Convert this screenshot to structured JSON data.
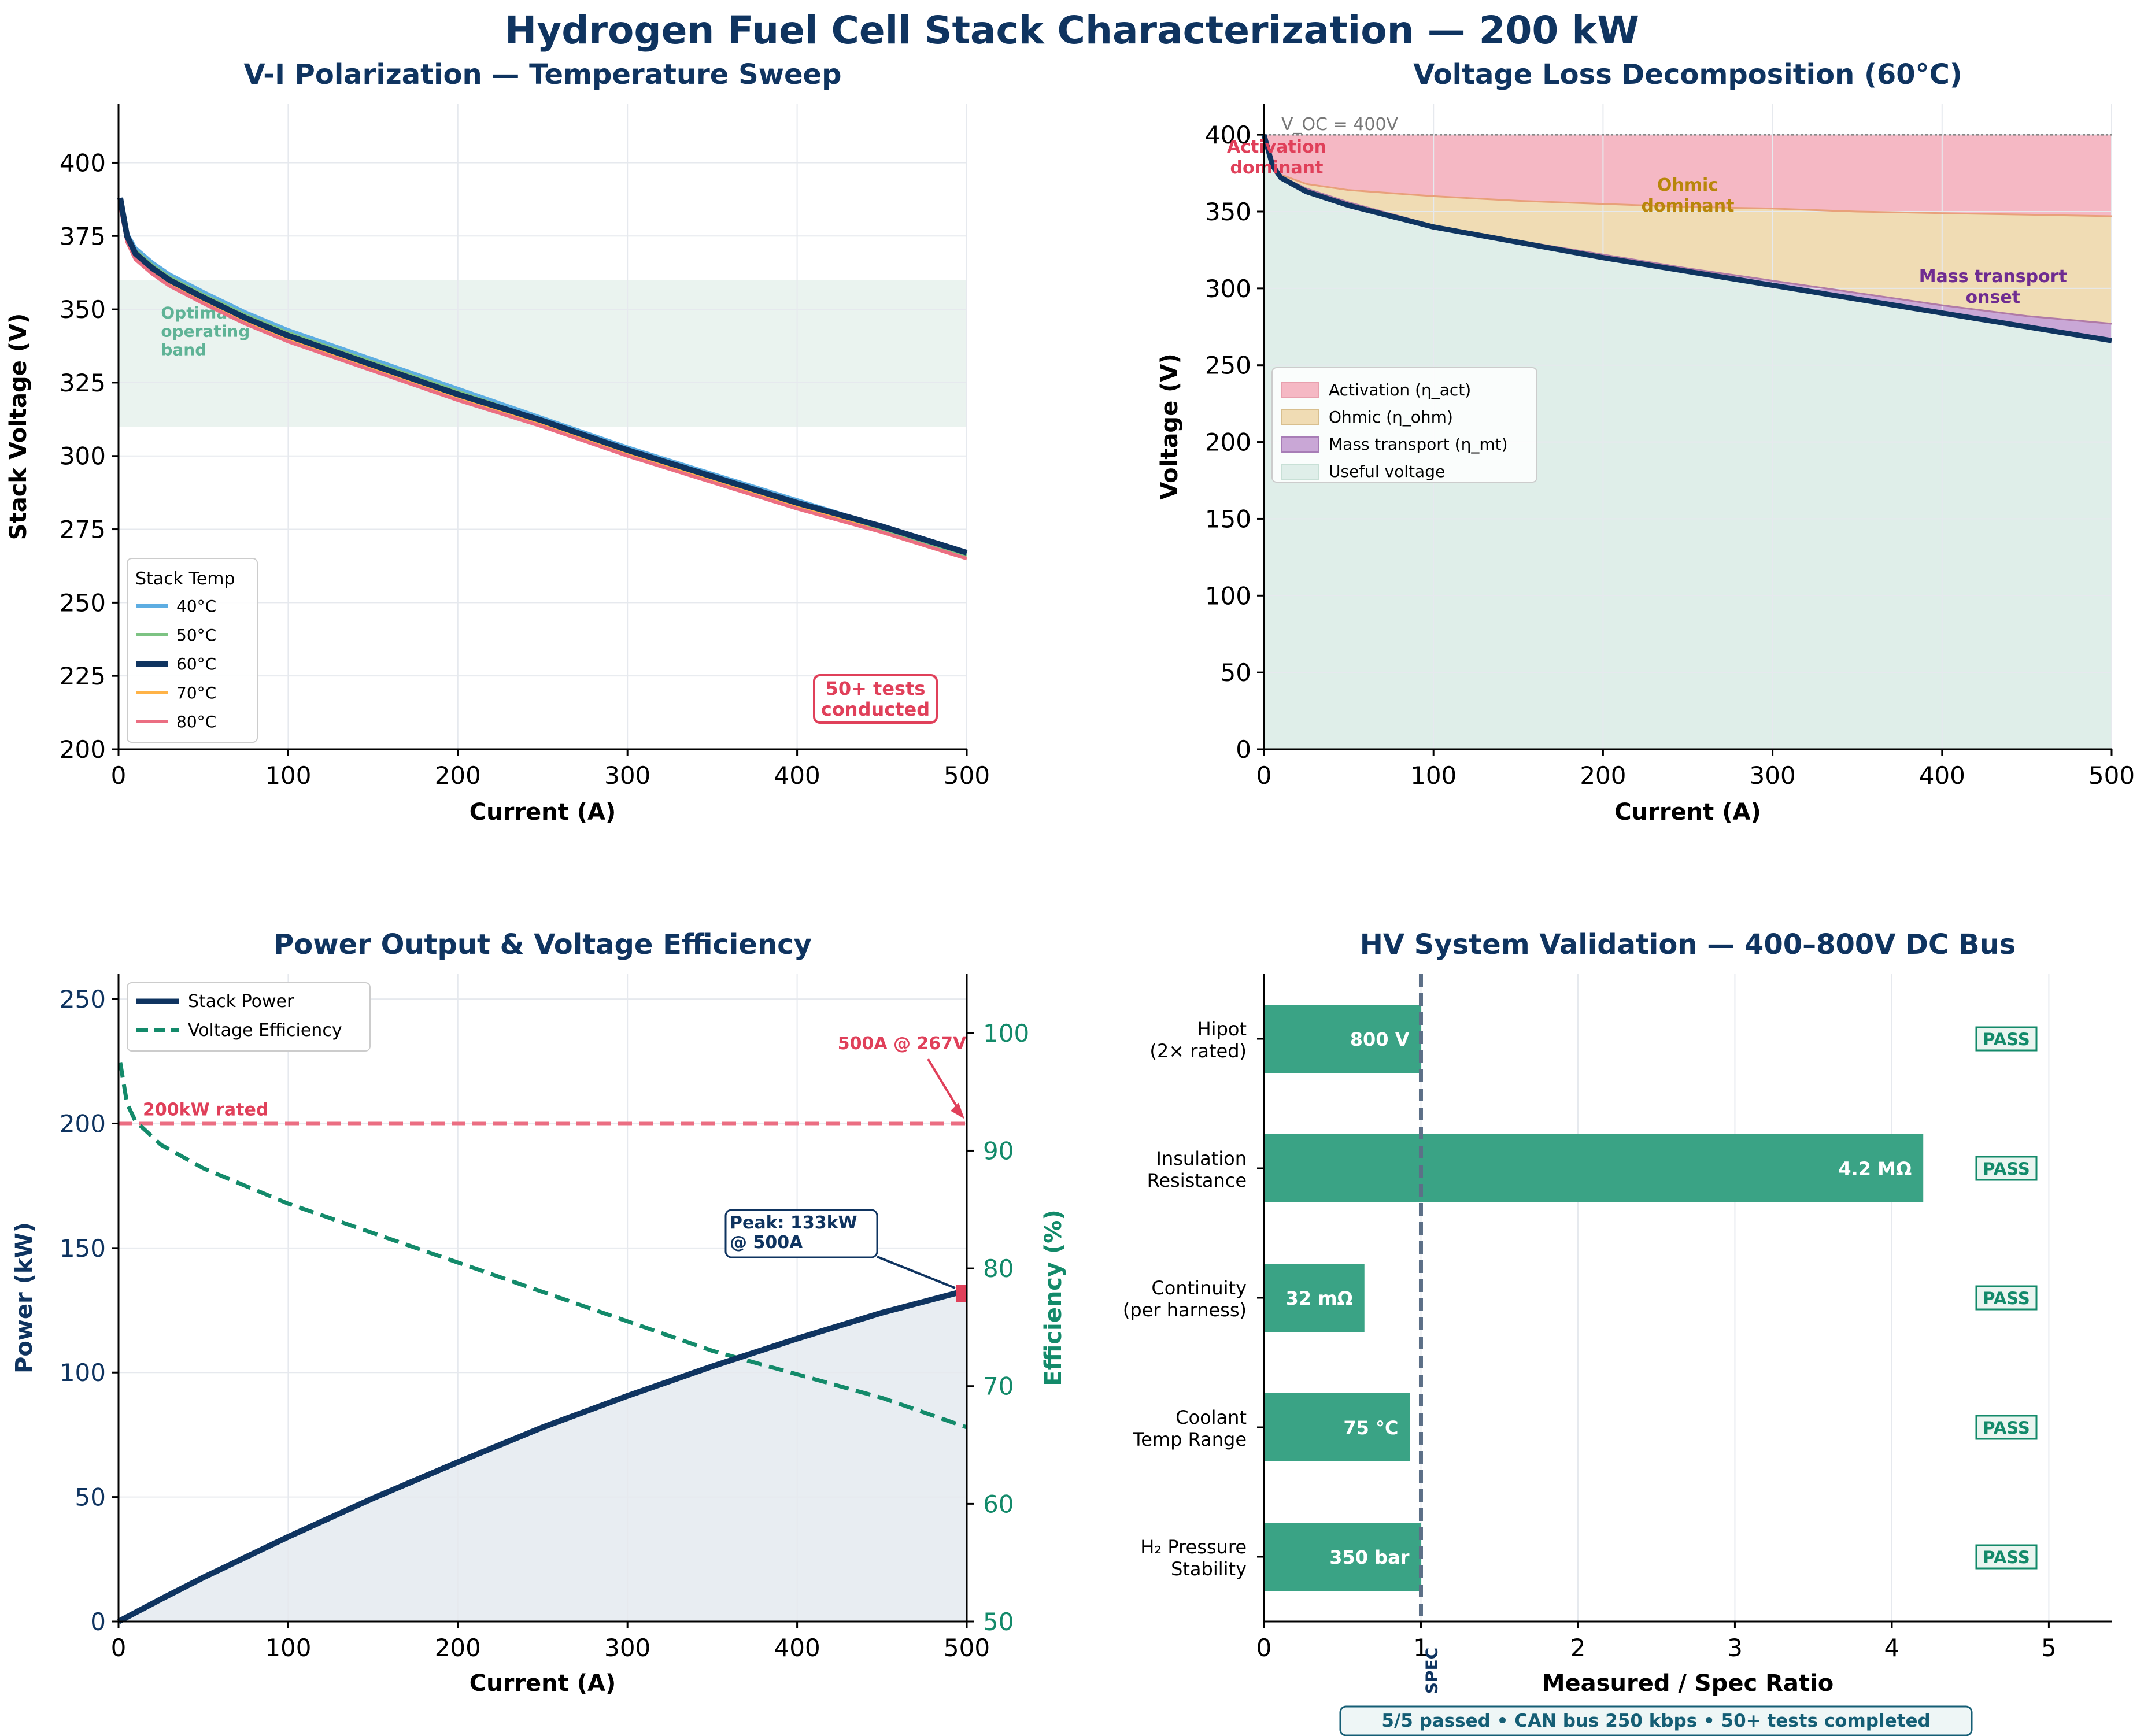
{
  "page": {
    "title": "Hydrogen Fuel Cell Stack Characterization — 200 kW"
  },
  "colors": {
    "navy": "#0f3460",
    "green": "#138a6a",
    "red": "#e0405a",
    "gray": "#666666",
    "t40": "#5dade2",
    "t50": "#7dc383",
    "t60": "#0f3460",
    "t70": "#ffb347",
    "t80": "#eb6e82",
    "activation_fill": "#f5b8c4",
    "ohmic_fill": "#f0dcb4",
    "mass_fill": "#c9a7d6",
    "useful_fill": "#dfeee9",
    "band_fill": "#eaf3ef",
    "bar_fill": "#3aa385"
  },
  "chart_data": [
    {
      "id": "vi",
      "type": "line",
      "title": "V-I Polarization — Temperature Sweep",
      "xlabel": "Current (A)",
      "ylabel": "Stack Voltage (V)",
      "xlim": [
        0,
        500
      ],
      "ylim": [
        200,
        420
      ],
      "xticks": [
        "0",
        "100",
        "200",
        "300",
        "400",
        "500"
      ],
      "yticks": [
        "200",
        "225",
        "250",
        "275",
        "300",
        "325",
        "350",
        "375",
        "400"
      ],
      "x": [
        1,
        5,
        10,
        20,
        30,
        50,
        75,
        100,
        150,
        200,
        250,
        300,
        350,
        400,
        450,
        500
      ],
      "series": [
        {
          "name": "40°C",
          "values": [
            388,
            376,
            371,
            366,
            362,
            356,
            349,
            343,
            333,
            323,
            313,
            303,
            294,
            285,
            276,
            267
          ]
        },
        {
          "name": "50°C",
          "values": [
            387,
            375,
            370,
            365,
            361,
            355,
            348,
            342,
            332,
            322,
            312,
            302,
            293,
            284,
            275,
            266
          ]
        },
        {
          "name": "60°C",
          "values": [
            388,
            375,
            369,
            364,
            360,
            354,
            347,
            341,
            331,
            321,
            312,
            302,
            293,
            284,
            276,
            267
          ]
        },
        {
          "name": "70°C",
          "values": [
            386,
            374,
            368,
            363,
            359,
            353,
            346,
            340,
            330,
            320,
            311,
            301,
            292,
            283,
            274,
            265
          ]
        },
        {
          "name": "80°C",
          "values": [
            385,
            373,
            367,
            362,
            358,
            352,
            345,
            339,
            329,
            319,
            310,
            300,
            291,
            282,
            274,
            265
          ]
        }
      ],
      "band": {
        "label_lines": [
          "Optimal",
          "operating",
          "band"
        ],
        "range": [
          310,
          360
        ]
      },
      "legend_title": "Stack Temp",
      "badge_lines": [
        "50+ tests",
        "conducted"
      ]
    },
    {
      "id": "loss",
      "type": "area",
      "title": "Voltage Loss Decomposition (60°C)",
      "xlabel": "Current (A)",
      "ylabel": "Voltage (V)",
      "xlim": [
        0,
        500
      ],
      "ylim": [
        0,
        420
      ],
      "xticks": [
        "0",
        "100",
        "200",
        "300",
        "400",
        "500"
      ],
      "yticks": [
        "0",
        "50",
        "100",
        "150",
        "200",
        "250",
        "300",
        "350",
        "400"
      ],
      "voc": 400,
      "voc_label": "V_OC = 400V",
      "x": [
        0,
        5,
        10,
        25,
        50,
        100,
        150,
        200,
        250,
        300,
        350,
        400,
        450,
        500
      ],
      "after_activation": [
        400,
        380,
        374,
        368,
        364,
        360,
        357,
        355,
        353,
        352,
        350,
        349,
        348,
        347
      ],
      "after_ohmic": [
        400,
        380,
        373,
        365,
        356,
        341,
        331,
        322,
        313,
        305,
        297,
        289,
        282,
        277
      ],
      "useful": [
        400,
        380,
        372,
        363,
        354,
        340,
        330,
        320,
        311,
        302,
        293,
        284,
        275,
        266
      ],
      "legend": [
        "Activation (η_act)",
        "Ohmic (η_ohm)",
        "Mass transport (η_mt)",
        "Useful voltage"
      ],
      "labels": {
        "activation": [
          "Activation",
          "dominant"
        ],
        "ohmic": [
          "Ohmic",
          "dominant"
        ],
        "mass": [
          "Mass transport",
          "onset"
        ]
      }
    },
    {
      "id": "power",
      "type": "line",
      "title": "Power Output & Voltage Efficiency",
      "xlabel": "Current (A)",
      "ylabel": "Power (kW)",
      "y2label": "Efficiency (%)",
      "xlim": [
        0,
        500
      ],
      "ylim": [
        0,
        260
      ],
      "y2lim": [
        50,
        105
      ],
      "xticks": [
        "0",
        "100",
        "200",
        "300",
        "400",
        "500"
      ],
      "yticks": [
        "0",
        "50",
        "100",
        "150",
        "200",
        "250"
      ],
      "y2ticks": [
        "50",
        "60",
        "70",
        "80",
        "90",
        "100"
      ],
      "x": [
        0,
        25,
        50,
        100,
        150,
        200,
        250,
        300,
        350,
        400,
        450,
        500
      ],
      "power_kw": [
        0,
        9,
        17.7,
        34,
        49.5,
        64,
        78,
        90.6,
        102.5,
        113.6,
        124,
        133
      ],
      "efficiency_x": [
        1,
        5,
        10,
        25,
        50,
        100,
        150,
        200,
        250,
        300,
        350,
        400,
        450,
        500
      ],
      "efficiency_pct": [
        97.5,
        94,
        92.5,
        90.5,
        88.5,
        85.5,
        83,
        80.5,
        78,
        75.5,
        73,
        71,
        69,
        66.5
      ],
      "rated_kw": 200,
      "rated_label": "200kW rated",
      "legend": [
        "Stack Power",
        "Voltage Efficiency"
      ],
      "peak_label": [
        "Peak: 133kW",
        "@ 500A"
      ],
      "point_label": "500A @ 267V"
    },
    {
      "id": "hv",
      "type": "bar",
      "orientation": "horizontal",
      "title": "HV System Validation — 400–800V DC Bus",
      "xlabel": "Measured / Spec Ratio",
      "xlim": [
        0,
        5.4
      ],
      "xticks": [
        "0",
        "1",
        "2",
        "3",
        "4",
        "5"
      ],
      "spec_line": 1,
      "spec_label": "SPEC",
      "categories": [
        [
          "Hipot",
          "(2× rated)"
        ],
        [
          "Insulation",
          "Resistance"
        ],
        [
          "Continuity",
          "(per harness)"
        ],
        [
          "Coolant",
          "Temp Range"
        ],
        [
          "H₂ Pressure",
          "Stability"
        ]
      ],
      "values": [
        1.0,
        4.2,
        0.64,
        0.93,
        1.0
      ],
      "value_labels": [
        "800 V",
        "4.2 MΩ",
        "32 mΩ",
        "75 °C",
        "350 bar"
      ],
      "status": [
        "PASS",
        "PASS",
        "PASS",
        "PASS",
        "PASS"
      ],
      "footer": "5/5 passed  •  CAN bus 250 kbps  •  50+ tests completed"
    }
  ]
}
